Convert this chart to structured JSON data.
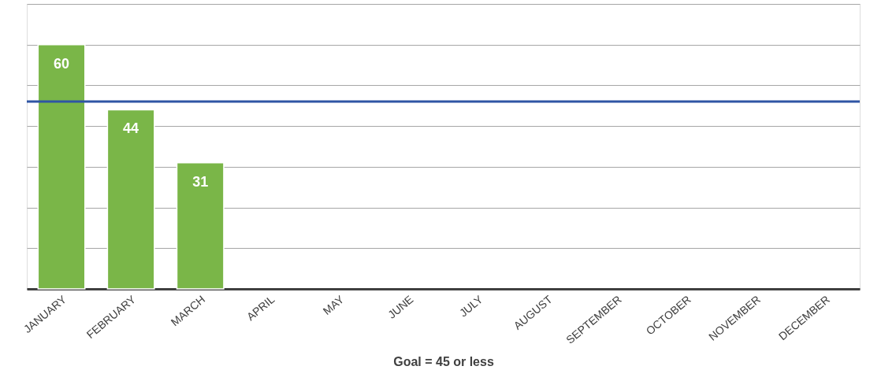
{
  "chart_data": {
    "type": "bar",
    "xlabel": "Goal = 45 or less",
    "categories": [
      "JANUARY",
      "FEBRUARY",
      "MARCH",
      "APRIL",
      "MAY",
      "JUNE",
      "JULY",
      "AUGUST",
      "SEPTEMBER",
      "OCTOBER",
      "NOVEMBER",
      "DECEMBER"
    ],
    "values": [
      60,
      44,
      31,
      null,
      null,
      null,
      null,
      null,
      null,
      null,
      null,
      null
    ],
    "color": "#7ab648",
    "data_labels": true,
    "ylim": [
      0,
      70
    ],
    "yticks": [
      {
        "value": 0,
        "label": null
      },
      {
        "value": 10,
        "label": null
      },
      {
        "value": 20,
        "label": null
      },
      {
        "value": 30,
        "label": null
      },
      {
        "value": 40,
        "label": null
      },
      {
        "value": 50,
        "label": null
      },
      {
        "value": 60,
        "label": null
      },
      {
        "value": 70,
        "label": null
      }
    ],
    "ref_lines": [
      {
        "axis": "y",
        "value": 46,
        "label": null,
        "color": "#2f55a4"
      }
    ],
    "grid": "y",
    "tick_labels": "x"
  }
}
